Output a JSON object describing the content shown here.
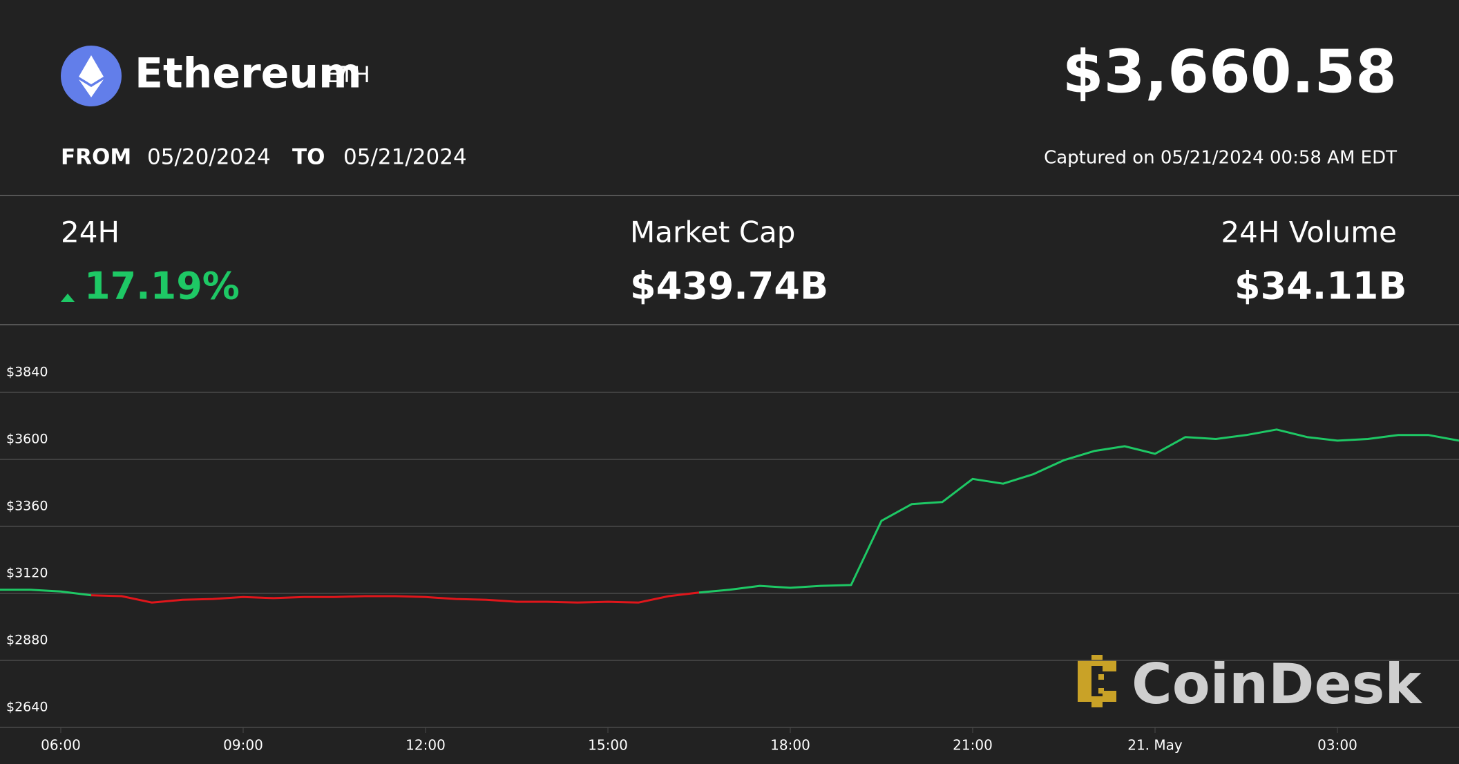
{
  "header": {
    "name": "Ethereum",
    "symbol": "ETH",
    "price": "$3,660.58",
    "from_label": "FROM",
    "from_date": "05/20/2024",
    "to_label": "TO",
    "to_date": "05/21/2024",
    "captured": "Captured on 05/21/2024 00:58 AM EDT"
  },
  "stats": {
    "change_label": "24H",
    "change_value": "17.19%",
    "market_cap_label": "Market Cap",
    "market_cap_value": "$439.74B",
    "volume_label": "24H Volume",
    "volume_value": "$34.11B"
  },
  "brand": "CoinDesk",
  "chart_data": {
    "type": "line",
    "x": [
      5,
      5.5,
      6,
      6.5,
      7,
      7.5,
      8,
      8.5,
      9,
      9.5,
      10,
      10.5,
      11,
      11.5,
      12,
      12.5,
      13,
      13.5,
      14,
      14.5,
      15,
      15.5,
      16,
      16.5,
      17,
      17.5,
      18,
      18.5,
      19,
      19.5,
      20,
      20.5,
      21,
      21.5,
      22,
      22.5,
      23,
      23.5,
      24,
      24.5,
      25,
      25.5,
      26,
      26.5,
      27,
      27.5,
      28,
      28.5,
      29
    ],
    "series": [
      {
        "color": "#1ec865",
        "values": [
          3133,
          3133,
          3127,
          3113,
          null,
          null,
          null,
          null,
          null,
          null,
          null,
          null,
          null,
          null,
          null,
          null,
          null,
          null,
          null,
          null,
          null,
          null,
          null,
          3123,
          3133,
          3147,
          3140,
          3147,
          3150,
          3380,
          3440,
          3447,
          3530,
          3513,
          3547,
          3597,
          3630,
          3647,
          3620,
          3680,
          3673,
          3687,
          3707,
          3680,
          3667,
          3673,
          3687,
          3687,
          3667
        ]
      },
      {
        "color": "#e0161b",
        "values": [
          null,
          null,
          null,
          3113,
          3110,
          3087,
          3097,
          3100,
          3107,
          3103,
          3107,
          3107,
          3110,
          3110,
          3107,
          3100,
          3097,
          3090,
          3090,
          3087,
          3090,
          3087,
          3110,
          3123,
          null,
          null,
          null,
          null,
          null,
          null,
          null,
          null,
          null,
          null,
          null,
          null,
          null,
          null,
          null,
          null,
          null,
          null,
          null,
          null,
          null,
          null,
          null,
          null,
          null
        ]
      }
    ],
    "xlim": [
      5,
      29
    ],
    "xticks": [
      {
        "value": 6,
        "label": "06:00"
      },
      {
        "value": 9,
        "label": "09:00"
      },
      {
        "value": 12,
        "label": "12:00"
      },
      {
        "value": 15,
        "label": "15:00"
      },
      {
        "value": 18,
        "label": "18:00"
      },
      {
        "value": 21,
        "label": "21:00"
      },
      {
        "value": 24,
        "label": "21. May"
      },
      {
        "value": 27,
        "label": "03:00"
      }
    ],
    "ylim": [
      2640,
      4080
    ],
    "yticks": [
      {
        "value": 2640,
        "label": "$2640"
      },
      {
        "value": 2880,
        "label": "$2880"
      },
      {
        "value": 3120,
        "label": "$3120"
      },
      {
        "value": 3360,
        "label": "$3360"
      },
      {
        "value": 3600,
        "label": "$3600"
      },
      {
        "value": 3840,
        "label": "$3840"
      }
    ],
    "grid": true
  }
}
